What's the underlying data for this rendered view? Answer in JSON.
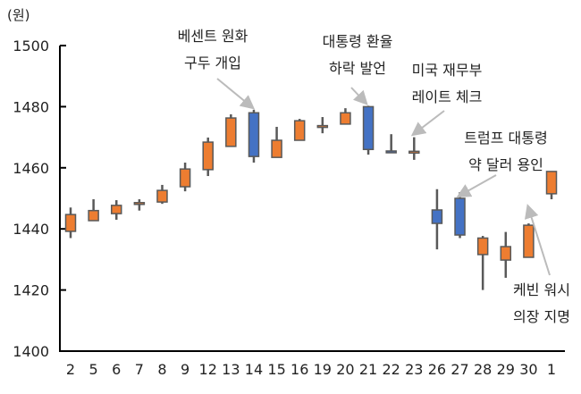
{
  "chart_data": {
    "type": "candlestick",
    "ylabel": "(원)",
    "ylim": [
      1400,
      1500
    ],
    "yticks": [
      1400,
      1420,
      1440,
      1460,
      1480,
      1500
    ],
    "grid": false,
    "categories": [
      "2",
      "5",
      "6",
      "7",
      "8",
      "9",
      "12",
      "13",
      "14",
      "15",
      "16",
      "19",
      "20",
      "21",
      "22",
      "23",
      "26",
      "27",
      "28",
      "29",
      "30",
      "1"
    ],
    "open": [
      1439.2,
      1442.7,
      1445.0,
      1448.3,
      1448.8,
      1453.8,
      1459.4,
      1467.0,
      1478.0,
      1463.4,
      1469.0,
      1473.5,
      1474.3,
      1480.0,
      1465.5,
      1464.9,
      1446.2,
      1450.0,
      1431.6,
      1429.8,
      1430.7,
      1451.5
    ],
    "close": [
      1444.7,
      1446.0,
      1447.7,
      1448.6,
      1452.6,
      1459.6,
      1468.4,
      1476.3,
      1463.7,
      1469.0,
      1475.4,
      1473.8,
      1478.0,
      1466.0,
      1465.3,
      1465.4,
      1441.8,
      1438.0,
      1437.0,
      1434.2,
      1441.2,
      1458.8
    ],
    "high": [
      1447.0,
      1449.7,
      1449.4,
      1449.7,
      1454.4,
      1461.7,
      1469.9,
      1477.5,
      1479.0,
      1473.4,
      1476.0,
      1476.6,
      1479.5,
      1480.3,
      1471.0,
      1470.0,
      1453.0,
      1452.0,
      1437.7,
      1439.0,
      1441.8,
      1458.8
    ],
    "low": [
      1437.0,
      1442.7,
      1443.0,
      1446.0,
      1448.2,
      1452.3,
      1457.3,
      1467.0,
      1461.7,
      1463.4,
      1469.0,
      1471.3,
      1474.3,
      1464.3,
      1464.9,
      1462.6,
      1433.3,
      1437.0,
      1420.0,
      1424.0,
      1430.7,
      1449.7
    ],
    "colors": {
      "up": "#ED7D31",
      "down": "#4472C4",
      "edge": "#595959"
    },
    "annotations": [
      {
        "lines": [
          "베센트 원화",
          "구두 개입"
        ],
        "target": "14"
      },
      {
        "lines": [
          "대통령 환율",
          "하락 발언"
        ],
        "target": "21"
      },
      {
        "lines": [
          "미국 재무부",
          "레이트 체크"
        ],
        "target": "23"
      },
      {
        "lines": [
          "트럼프 대통령",
          "약 달러 용인"
        ],
        "target": "27"
      },
      {
        "lines": [
          "케빈 워시",
          "의장 지명"
        ],
        "target": "30"
      }
    ]
  }
}
